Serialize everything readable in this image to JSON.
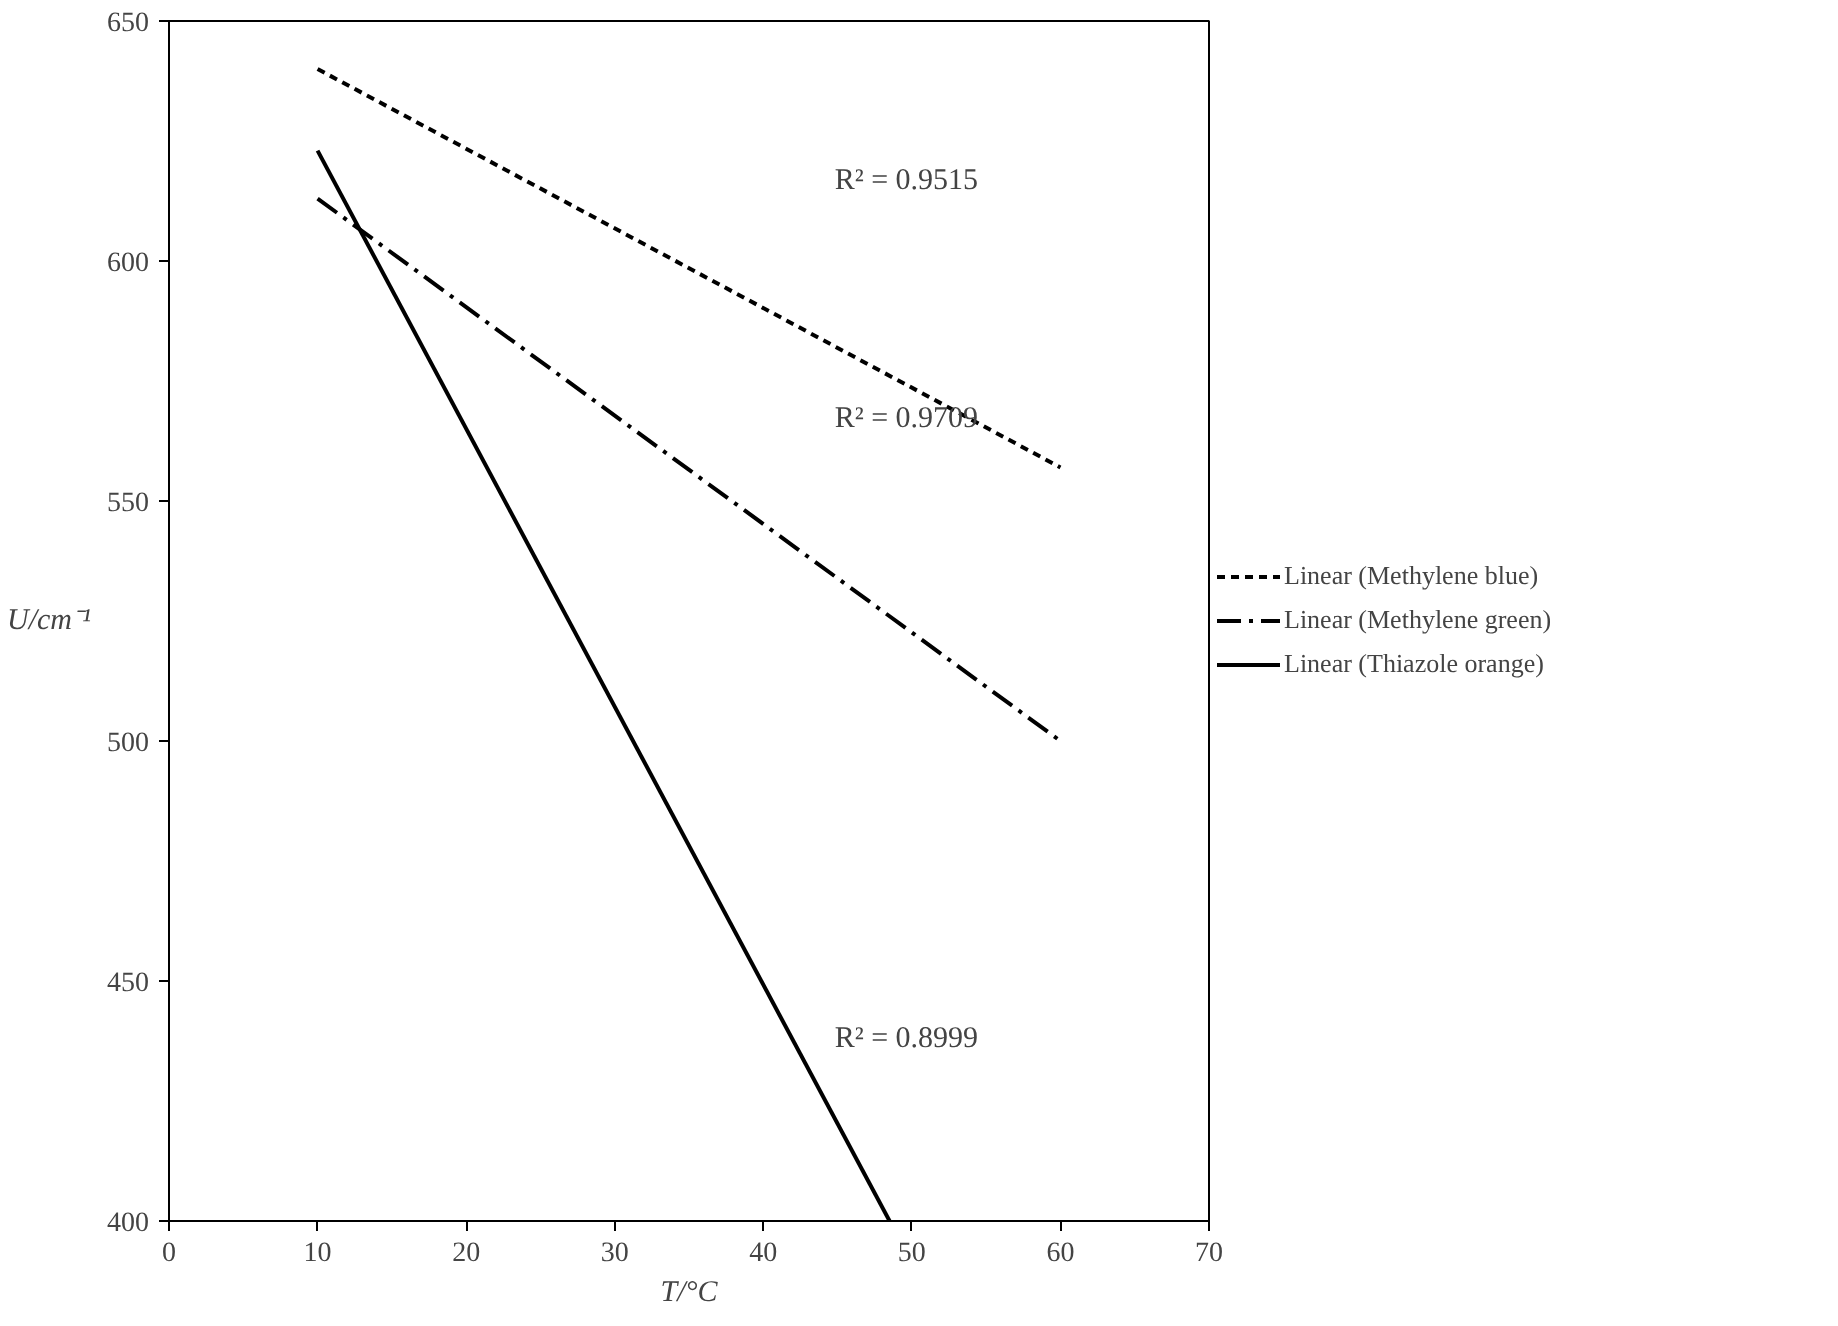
{
  "chart_data": {
    "type": "line",
    "xlabel": "T/°C",
    "ylabel": "U/cm⁻¹",
    "xlim": [
      0,
      70
    ],
    "ylim": [
      400,
      650
    ],
    "xticks": [
      0,
      10,
      20,
      30,
      40,
      50,
      60,
      70
    ],
    "yticks": [
      400,
      450,
      500,
      550,
      600,
      650
    ],
    "grid": false,
    "legend": "right",
    "marker": "none",
    "series": [
      {
        "name": "Linear (Methylene blue)",
        "color": "#000000",
        "line_style": "dashed",
        "x": [
          10,
          60
        ],
        "values": [
          640,
          557
        ]
      },
      {
        "name": "Linear (Methylene green)",
        "color": "#000000",
        "line_style": "dashdot",
        "x": [
          10,
          60
        ],
        "values": [
          613,
          500
        ]
      },
      {
        "name": "Linear (Thiazole orange)",
        "color": "#000000",
        "line_style": "solid",
        "x": [
          10,
          48.5
        ],
        "values": [
          623,
          400
        ]
      }
    ],
    "annotations": [
      "R² = 0.9515",
      "R² = 0.9709",
      "R² = 0.8999"
    ]
  }
}
